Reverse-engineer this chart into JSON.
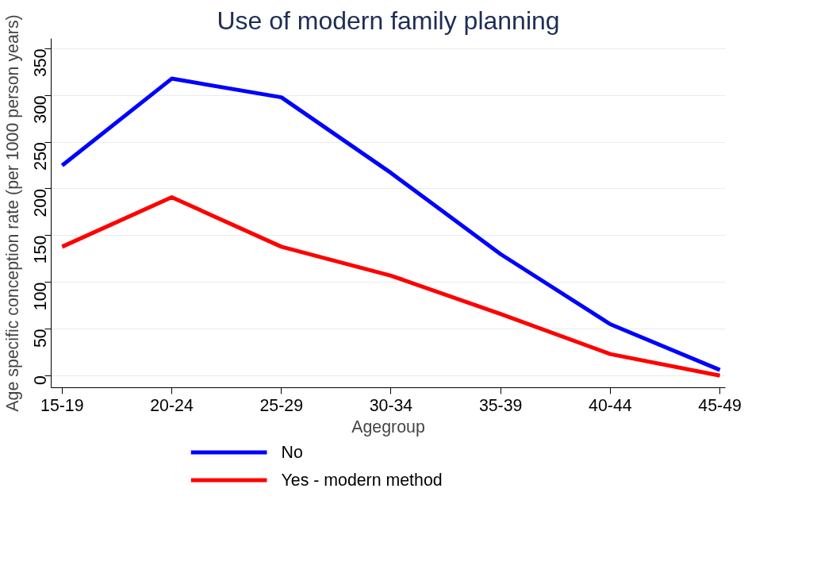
{
  "chart_data": {
    "type": "line",
    "title": "Use of modern family planning",
    "xlabel": "Agegroup",
    "ylabel": "Age specific conception rate (per 1000 person years)",
    "categories": [
      "15-19",
      "20-24",
      "25-29",
      "30-34",
      "35-39",
      "40-44",
      "45-49"
    ],
    "series": [
      {
        "name": "No",
        "color": "#0000ff",
        "values": [
          225,
          318,
          298,
          217,
          130,
          55,
          6
        ]
      },
      {
        "name": "Yes - modern method",
        "color": "#ff0000",
        "values": [
          138,
          191,
          138,
          107,
          66,
          23,
          0
        ]
      }
    ],
    "ylim": [
      -13,
      361
    ],
    "yticks": [
      0,
      50,
      100,
      150,
      200,
      250,
      300,
      350
    ],
    "grid": "y",
    "legend": "bottom",
    "line_style": "solid"
  }
}
